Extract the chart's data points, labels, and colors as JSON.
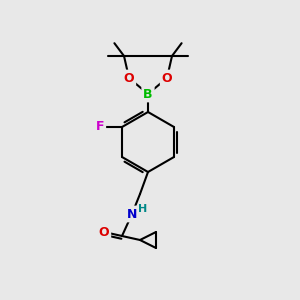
{
  "bg_color": "#e8e8e8",
  "bond_color": "#000000",
  "bond_width": 1.5,
  "atom_colors": {
    "B": "#00bb00",
    "O": "#dd0000",
    "F": "#cc00cc",
    "N": "#0000cc",
    "C": "#000000",
    "H": "#008888"
  },
  "font_size": 9,
  "font_size_small": 8
}
